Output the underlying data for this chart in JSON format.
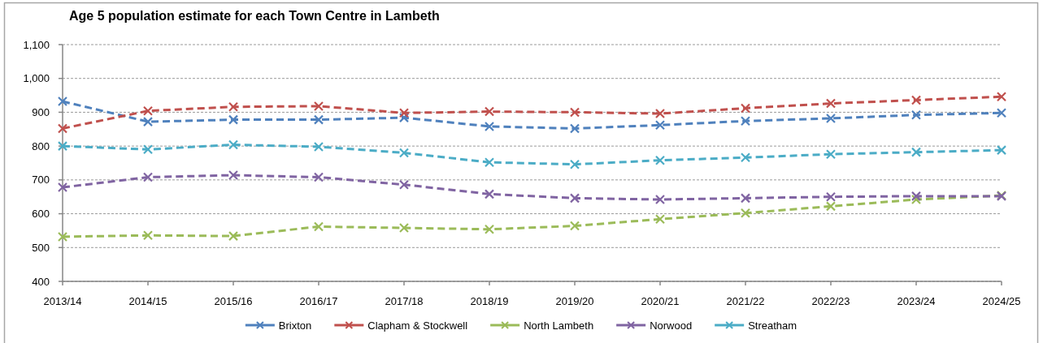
{
  "chart_data": {
    "type": "line",
    "title": "Age 5 population estimate for each Town Centre in Lambeth",
    "categories": [
      "2013/14",
      "2014/15",
      "2015/16",
      "2016/17",
      "2017/18",
      "2018/19",
      "2019/20",
      "2020/21",
      "2021/22",
      "2022/23",
      "2023/24",
      "2024/25"
    ],
    "series": [
      {
        "name": "Brixton",
        "color": "#4f81bd",
        "values": [
          932,
          872,
          878,
          878,
          884,
          858,
          852,
          862,
          874,
          882,
          892,
          898
        ]
      },
      {
        "name": "Clapham & Stockwell",
        "color": "#c0504d",
        "values": [
          852,
          904,
          916,
          918,
          898,
          902,
          900,
          896,
          912,
          926,
          936,
          946
        ]
      },
      {
        "name": "North Lambeth",
        "color": "#9bbb59",
        "values": [
          532,
          536,
          534,
          562,
          558,
          554,
          564,
          584,
          602,
          622,
          642,
          654
        ]
      },
      {
        "name": "Norwood",
        "color": "#8064a2",
        "values": [
          678,
          708,
          714,
          708,
          686,
          658,
          646,
          642,
          646,
          650,
          652,
          652
        ]
      },
      {
        "name": "Streatham",
        "color": "#4bacc6",
        "values": [
          800,
          790,
          804,
          798,
          780,
          752,
          746,
          758,
          766,
          776,
          782,
          788
        ]
      }
    ],
    "ylim": [
      400,
      1100
    ],
    "yticks": [
      400,
      500,
      600,
      700,
      800,
      900,
      {
        "value": 1000,
        "label": "1,000"
      },
      {
        "value": 1100,
        "label": "1,100"
      }
    ],
    "grid": "y",
    "legend": "bottom",
    "marker": "cross",
    "line_style": "dashed"
  }
}
